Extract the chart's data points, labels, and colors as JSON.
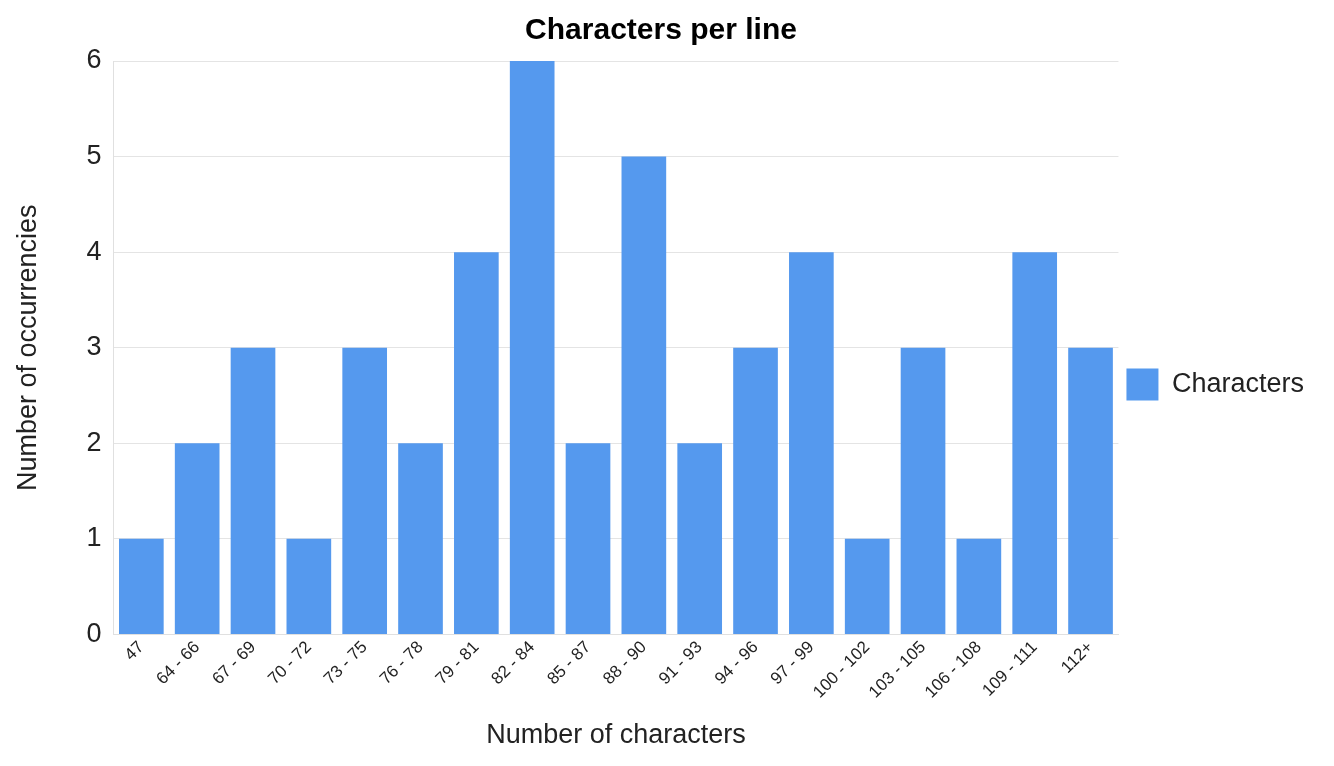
{
  "chart_data": {
    "type": "bar",
    "title": "Characters per line",
    "xlabel": "Number of characters",
    "ylabel": "Number of occurrencies",
    "categories": [
      "47",
      "64 - 66",
      "67 - 69",
      "70 - 72",
      "73 - 75",
      "76 - 78",
      "79 - 81",
      "82 - 84",
      "85 - 87",
      "88 - 90",
      "91 - 93",
      "94 - 96",
      "97 - 99",
      "100 - 102",
      "103 - 105",
      "106 - 108",
      "109 - 111",
      "112+"
    ],
    "series": [
      {
        "name": "Characters",
        "color": "#5599ee",
        "values": [
          1,
          2,
          3,
          1,
          3,
          2,
          4,
          6,
          2,
          5,
          2,
          3,
          4,
          1,
          3,
          1,
          4,
          3
        ]
      }
    ],
    "ylim": [
      0,
      6
    ],
    "yticks": [
      0,
      1,
      2,
      3,
      4,
      5,
      6
    ],
    "grid": "y",
    "legend": "right"
  }
}
